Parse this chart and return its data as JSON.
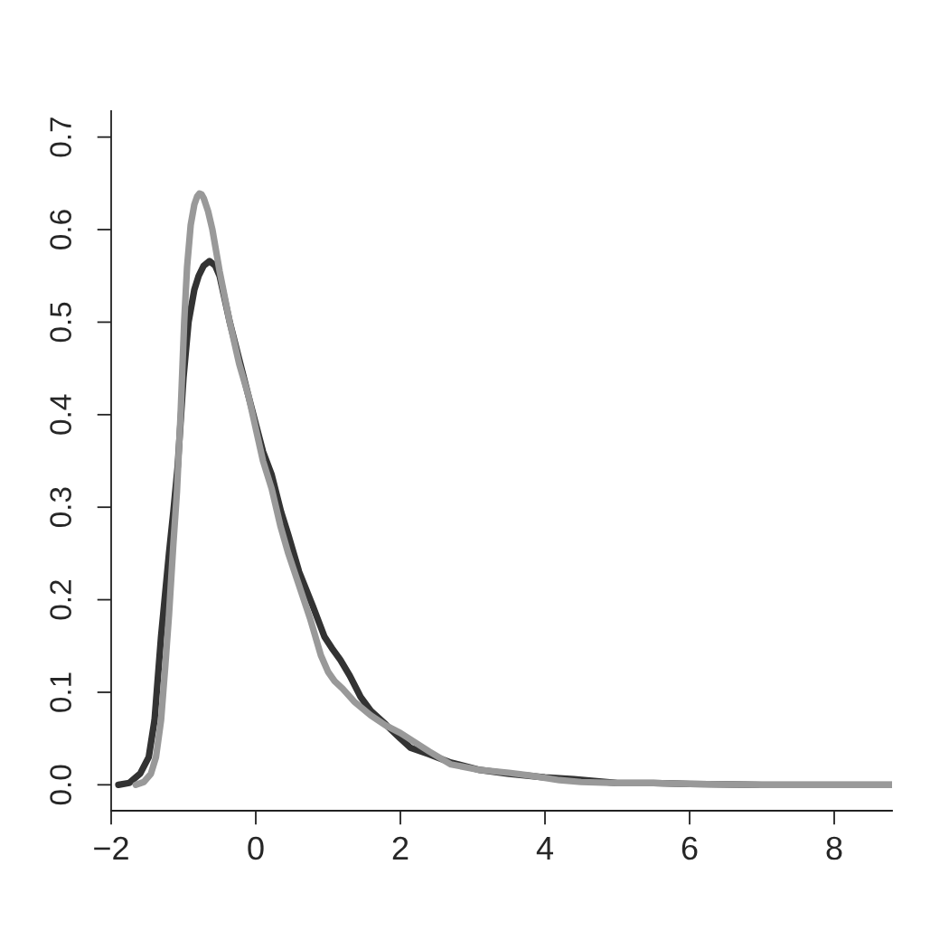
{
  "chart_data": {
    "type": "line",
    "series": [
      {
        "color": "#333333",
        "x": [
          -1.9,
          -1.75,
          -1.6,
          -1.48,
          -1.4,
          -1.31,
          -1.2,
          -1.14,
          -1.08,
          -1.0,
          -0.93,
          -0.85,
          -0.79,
          -0.72,
          -0.64,
          -0.56,
          -0.5,
          -0.36,
          -0.23,
          -0.1,
          0,
          0.1,
          0.22,
          0.35,
          0.45,
          0.6,
          0.79,
          0.95,
          1.05,
          1.17,
          1.3,
          1.45,
          1.59,
          1.8,
          2.0,
          2.14,
          2.4,
          2.7,
          3.1,
          3.5,
          4.0,
          4.4,
          5.0,
          5.5,
          6.0,
          7.0,
          8.0,
          8.8
        ],
        "values": [
          0,
          0.002,
          0.012,
          0.03,
          0.07,
          0.16,
          0.25,
          0.295,
          0.344,
          0.44,
          0.5,
          0.535,
          0.55,
          0.561,
          0.566,
          0.561,
          0.55,
          0.5,
          0.46,
          0.42,
          0.39,
          0.36,
          0.335,
          0.295,
          0.27,
          0.23,
          0.193,
          0.16,
          0.148,
          0.135,
          0.118,
          0.095,
          0.08,
          0.065,
          0.05,
          0.04,
          0.033,
          0.024,
          0.016,
          0.012,
          0.008,
          0.006,
          0.002,
          0.002,
          0.001,
          0,
          0,
          0
        ]
      },
      {
        "color": "#999999",
        "x": [
          -1.66,
          -1.55,
          -1.45,
          -1.38,
          -1.31,
          -1.25,
          -1.2,
          -1.14,
          -1.09,
          -1.04,
          -0.99,
          -0.95,
          -0.9,
          -0.85,
          -0.81,
          -0.78,
          -0.75,
          -0.72,
          -0.66,
          -0.6,
          -0.5,
          -0.36,
          -0.23,
          -0.1,
          0,
          0.1,
          0.22,
          0.34,
          0.45,
          0.6,
          0.75,
          0.9,
          1.0,
          1.09,
          1.2,
          1.36,
          1.59,
          1.8,
          2.0,
          2.2,
          2.4,
          2.7,
          3.1,
          3.5,
          3.8,
          4.2,
          4.5,
          5.0,
          5.5,
          6.0,
          7.0,
          8.8
        ],
        "values": [
          0,
          0.003,
          0.012,
          0.03,
          0.07,
          0.13,
          0.184,
          0.26,
          0.317,
          0.4,
          0.5,
          0.56,
          0.605,
          0.627,
          0.636,
          0.639,
          0.638,
          0.634,
          0.62,
          0.6,
          0.555,
          0.5,
          0.455,
          0.42,
          0.385,
          0.35,
          0.32,
          0.28,
          0.25,
          0.215,
          0.18,
          0.14,
          0.122,
          0.112,
          0.104,
          0.09,
          0.075,
          0.064,
          0.056,
          0.046,
          0.036,
          0.022,
          0.016,
          0.013,
          0.01,
          0.005,
          0.003,
          0.002,
          0.002,
          0.001,
          0,
          0
        ]
      }
    ],
    "xlim": [
      -2,
      8.8
    ],
    "ylim": [
      -0.028,
      0.728
    ],
    "xticks": [
      -2,
      0,
      2,
      4,
      6,
      8
    ],
    "yticks": [
      {
        "value": 0,
        "label": "0.0"
      },
      0.1,
      0.2,
      0.3,
      0.4,
      0.5,
      0.6,
      0.7
    ],
    "line_style": "solid",
    "marker": "none"
  }
}
